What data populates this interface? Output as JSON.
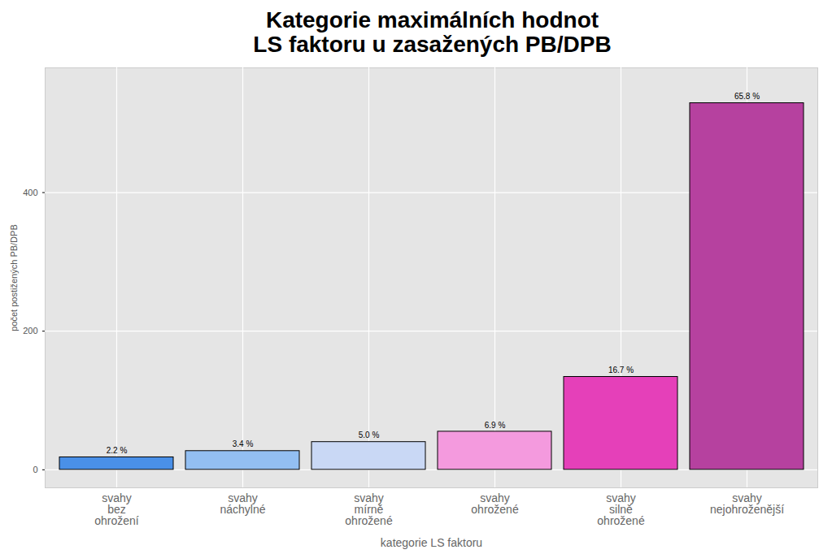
{
  "chart_data": {
    "type": "bar",
    "title": "Kategorie maximálních hodnot\nLS faktoru u zasažených PB/DPB",
    "x_label": "kategorie LS faktoru",
    "y_label": "počet postižených PB/DPB",
    "categories": [
      "svahy\nbez\nohrožení",
      "svahy\nnáchylné",
      "svahy\nmírně\nohrožené",
      "svahy\nohrožené",
      "svahy\nsilně\nohrožené",
      "svahy\nnejohroženější"
    ],
    "values": [
      18,
      27,
      40,
      55,
      134,
      529
    ],
    "bar_labels": [
      "2.2 %",
      "3.4 %",
      "5.0 %",
      "6.9 %",
      "16.7 %",
      "65.8 %"
    ],
    "colors": [
      "#4a90e8",
      "#93bff2",
      "#c9d8f5",
      "#f49ade",
      "#e540b9",
      "#b6419f"
    ],
    "ylim": [
      -26,
      580
    ],
    "yticks": [
      0,
      200,
      400
    ],
    "grid": true
  }
}
